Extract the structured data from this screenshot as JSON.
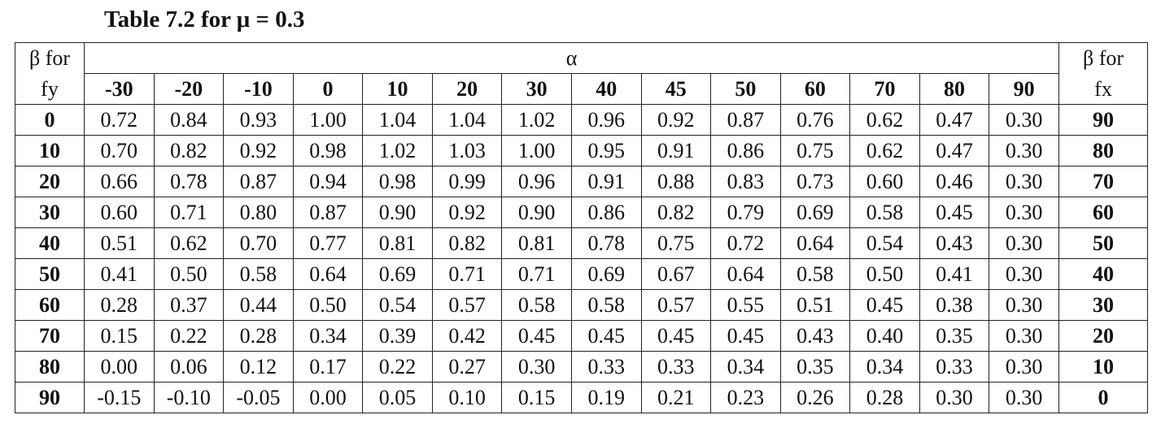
{
  "title": "Table 7.2 for μ = 0.3",
  "header": {
    "left_top": "β for",
    "left_bottom": "fy",
    "group": "α",
    "right_top": "β for",
    "right_bottom": "fx",
    "columns": [
      "-30",
      "-20",
      "-10",
      "0",
      "10",
      "20",
      "30",
      "40",
      "45",
      "50",
      "60",
      "70",
      "80",
      "90"
    ]
  },
  "rows": [
    {
      "beta_fy": "0",
      "values": [
        "0.72",
        "0.84",
        "0.93",
        "1.00",
        "1.04",
        "1.04",
        "1.02",
        "0.96",
        "0.92",
        "0.87",
        "0.76",
        "0.62",
        "0.47",
        "0.30"
      ],
      "beta_fx": "90"
    },
    {
      "beta_fy": "10",
      "values": [
        "0.70",
        "0.82",
        "0.92",
        "0.98",
        "1.02",
        "1.03",
        "1.00",
        "0.95",
        "0.91",
        "0.86",
        "0.75",
        "0.62",
        "0.47",
        "0.30"
      ],
      "beta_fx": "80"
    },
    {
      "beta_fy": "20",
      "values": [
        "0.66",
        "0.78",
        "0.87",
        "0.94",
        "0.98",
        "0.99",
        "0.96",
        "0.91",
        "0.88",
        "0.83",
        "0.73",
        "0.60",
        "0.46",
        "0.30"
      ],
      "beta_fx": "70"
    },
    {
      "beta_fy": "30",
      "values": [
        "0.60",
        "0.71",
        "0.80",
        "0.87",
        "0.90",
        "0.92",
        "0.90",
        "0.86",
        "0.82",
        "0.79",
        "0.69",
        "0.58",
        "0.45",
        "0.30"
      ],
      "beta_fx": "60"
    },
    {
      "beta_fy": "40",
      "values": [
        "0.51",
        "0.62",
        "0.70",
        "0.77",
        "0.81",
        "0.82",
        "0.81",
        "0.78",
        "0.75",
        "0.72",
        "0.64",
        "0.54",
        "0.43",
        "0.30"
      ],
      "beta_fx": "50"
    },
    {
      "beta_fy": "50",
      "values": [
        "0.41",
        "0.50",
        "0.58",
        "0.64",
        "0.69",
        "0.71",
        "0.71",
        "0.69",
        "0.67",
        "0.64",
        "0.58",
        "0.50",
        "0.41",
        "0.30"
      ],
      "beta_fx": "40"
    },
    {
      "beta_fy": "60",
      "values": [
        "0.28",
        "0.37",
        "0.44",
        "0.50",
        "0.54",
        "0.57",
        "0.58",
        "0.58",
        "0.57",
        "0.55",
        "0.51",
        "0.45",
        "0.38",
        "0.30"
      ],
      "beta_fx": "30"
    },
    {
      "beta_fy": "70",
      "values": [
        "0.15",
        "0.22",
        "0.28",
        "0.34",
        "0.39",
        "0.42",
        "0.45",
        "0.45",
        "0.45",
        "0.45",
        "0.43",
        "0.40",
        "0.35",
        "0.30"
      ],
      "beta_fx": "20"
    },
    {
      "beta_fy": "80",
      "values": [
        "0.00",
        "0.06",
        "0.12",
        "0.17",
        "0.22",
        "0.27",
        "0.30",
        "0.33",
        "0.33",
        "0.34",
        "0.35",
        "0.34",
        "0.33",
        "0.30"
      ],
      "beta_fx": "10"
    },
    {
      "beta_fy": "90",
      "values": [
        "-0.15",
        "-0.10",
        "-0.05",
        "0.00",
        "0.05",
        "0.10",
        "0.15",
        "0.19",
        "0.21",
        "0.23",
        "0.26",
        "0.28",
        "0.30",
        "0.30"
      ],
      "beta_fx": "0"
    }
  ]
}
